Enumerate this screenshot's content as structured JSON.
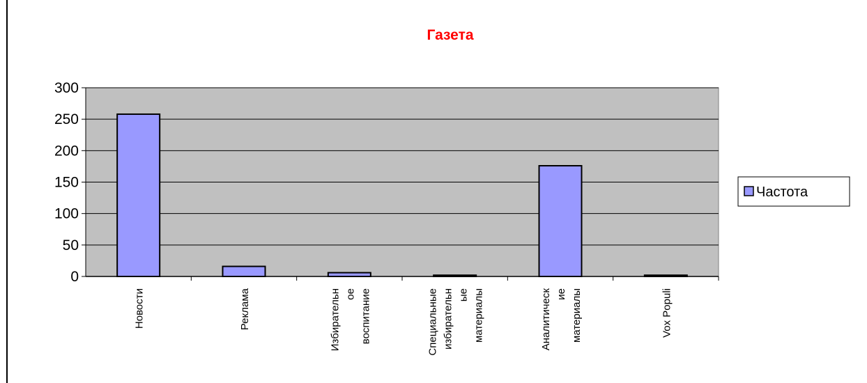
{
  "chart_data": {
    "type": "bar",
    "title": "Газета",
    "title_color": "#ff0000",
    "categories": [
      [
        "Новости"
      ],
      [
        "Реклама"
      ],
      [
        "Избирательн",
        "ое",
        "воспитание"
      ],
      [
        "Специальные",
        "избирательн",
        "ые",
        "материалы"
      ],
      [
        "Аналитическ",
        "ие",
        "материалы"
      ],
      [
        "Vox Populi"
      ]
    ],
    "series": [
      {
        "name": "Частота",
        "values": [
          258,
          16,
          6,
          2,
          176,
          2
        ]
      }
    ],
    "ylim": [
      0,
      300
    ],
    "yticks": [
      0,
      50,
      100,
      150,
      200,
      250,
      300
    ],
    "grid": true,
    "legend": "right",
    "colors": {
      "bar_fill": "#9999ff",
      "plot_bg": "#c0c0c0",
      "title": "#ff0000",
      "axis": "#000000",
      "gridline": "#000000"
    }
  }
}
